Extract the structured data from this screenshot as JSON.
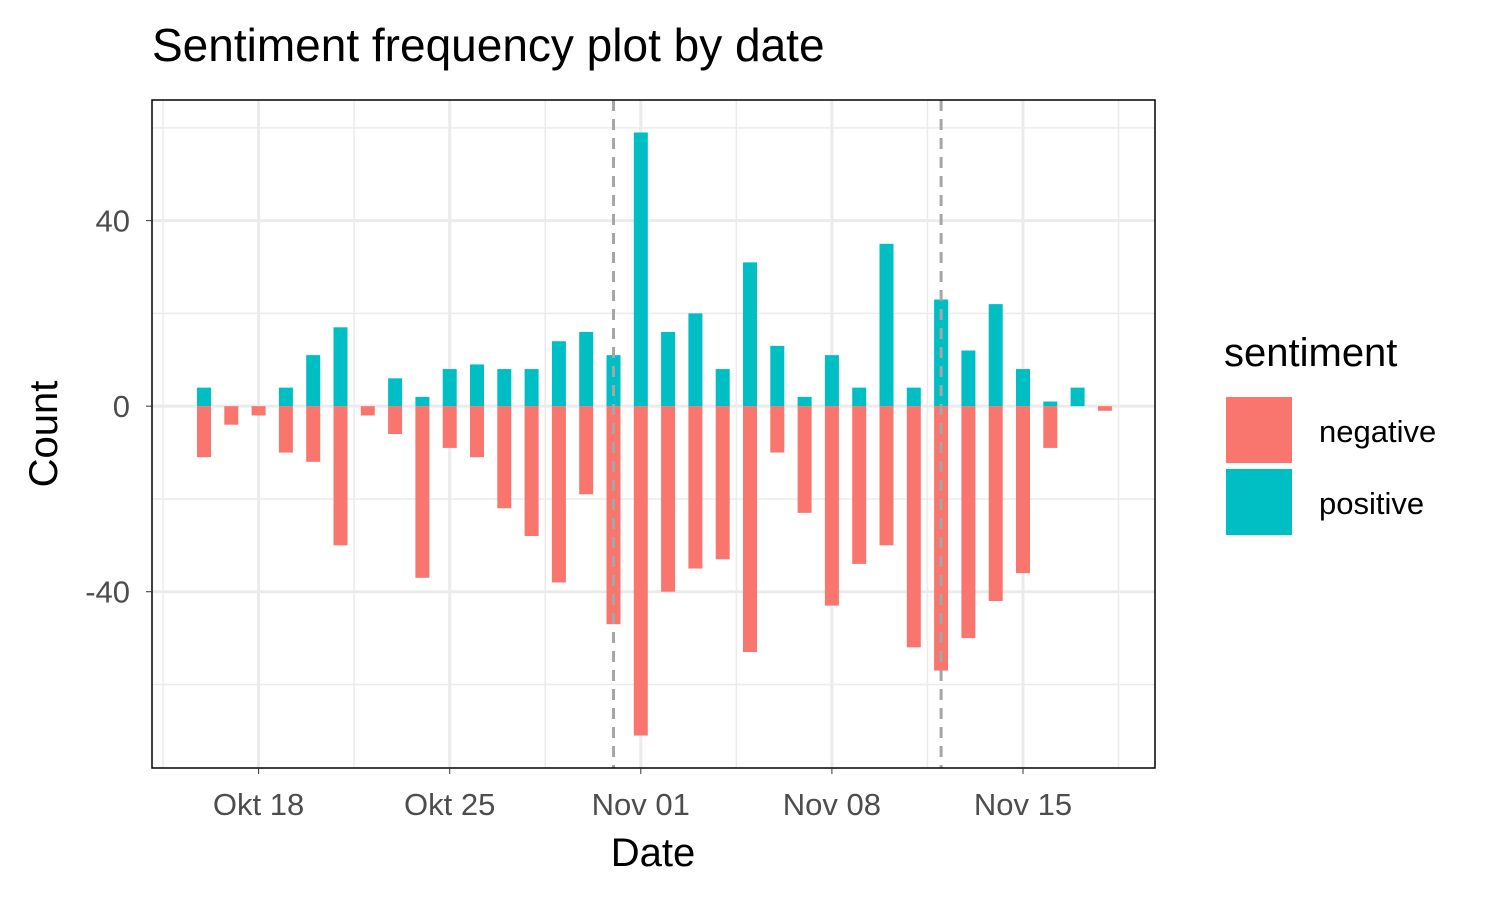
{
  "chart_data": {
    "type": "bar",
    "title": "Sentiment frequency plot by date",
    "xlabel": "Date",
    "ylabel": "Count",
    "x_ticks": [
      "Okt 18",
      "Okt 25",
      "Nov 01",
      "Nov 08",
      "Nov 15"
    ],
    "y_ticks": [
      40,
      0,
      -40
    ],
    "ylim": [
      -78,
      66
    ],
    "grid": true,
    "legend": {
      "title": "sentiment",
      "position": "right"
    },
    "dates": [
      "Okt 16",
      "Okt 17",
      "Okt 18",
      "Okt 19",
      "Okt 20",
      "Okt 21",
      "Okt 22",
      "Okt 23",
      "Okt 24",
      "Okt 25",
      "Okt 26",
      "Okt 27",
      "Okt 28",
      "Okt 29",
      "Okt 30",
      "Okt 31",
      "Nov 01",
      "Nov 02",
      "Nov 03",
      "Nov 04",
      "Nov 05",
      "Nov 06",
      "Nov 07",
      "Nov 08",
      "Nov 09",
      "Nov 10",
      "Nov 11",
      "Nov 12",
      "Nov 13",
      "Nov 14",
      "Nov 15",
      "Nov 16",
      "Nov 17",
      "Nov 18"
    ],
    "series": [
      {
        "name": "negative",
        "color": "#F8766D",
        "values": [
          -11,
          -4,
          -2,
          -10,
          -12,
          -30,
          -2,
          -6,
          -37,
          -9,
          -11,
          -22,
          -28,
          -38,
          -19,
          -47,
          -71,
          -40,
          -35,
          -33,
          -53,
          -10,
          -23,
          -43,
          -34,
          -30,
          -52,
          -57,
          -50,
          -42,
          -36,
          -9,
          0,
          -1
        ]
      },
      {
        "name": "positive",
        "color": "#00BFC4",
        "values": [
          4,
          0,
          0,
          4,
          11,
          17,
          0,
          6,
          2,
          8,
          9,
          8,
          8,
          14,
          16,
          11,
          59,
          16,
          20,
          8,
          31,
          13,
          2,
          11,
          4,
          35,
          4,
          23,
          12,
          22,
          8,
          1,
          4,
          0
        ]
      }
    ],
    "reference_lines": [
      "Okt 31",
      "Nov 12"
    ]
  }
}
